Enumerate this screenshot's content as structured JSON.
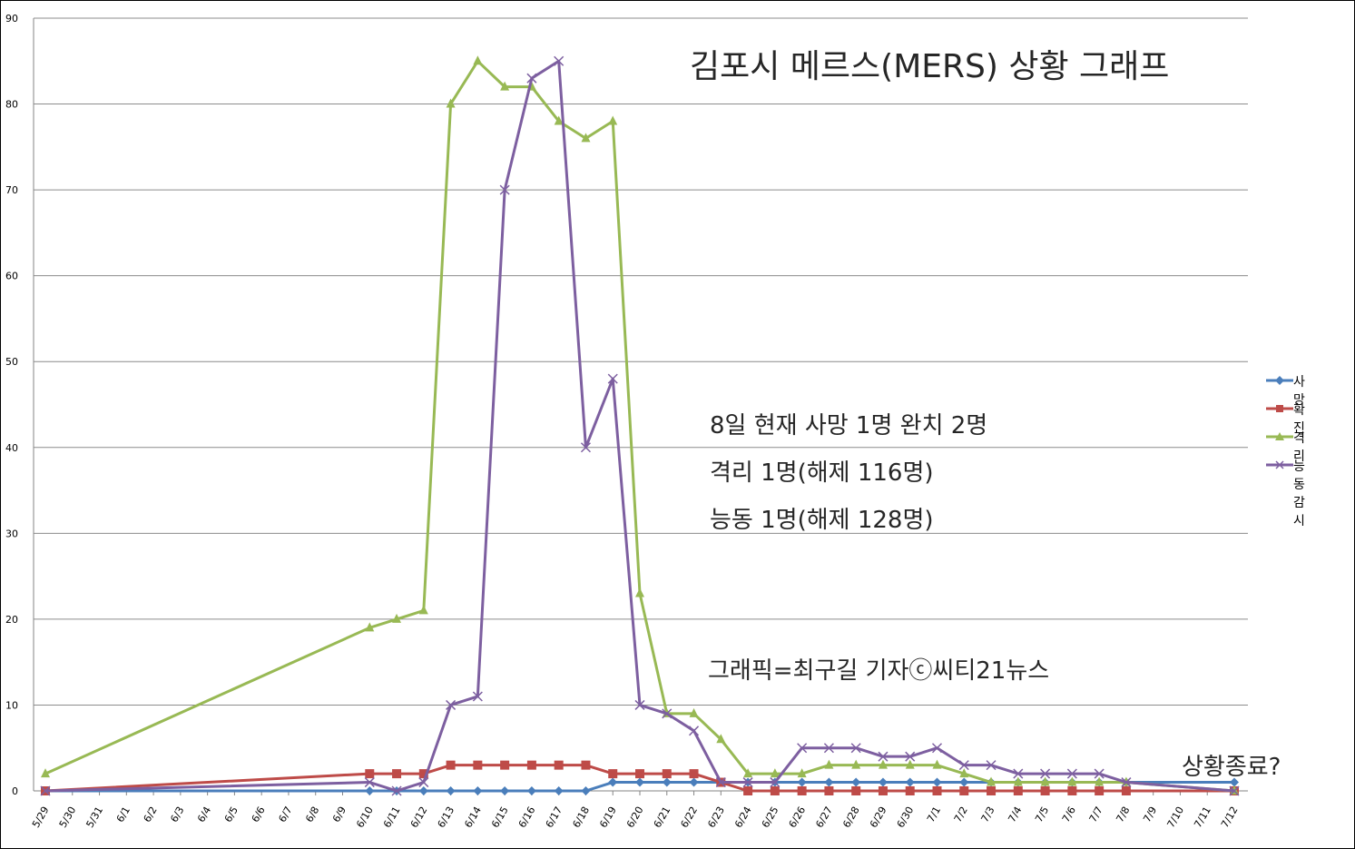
{
  "chart_data": {
    "type": "line",
    "title": "김포시 메르스(MERS) 상황 그래프",
    "categories": [
      "5/29",
      "5/30",
      "5/31",
      "6/1",
      "6/2",
      "6/3",
      "6/4",
      "6/5",
      "6/6",
      "6/7",
      "6/8",
      "6/9",
      "6/10",
      "6/11",
      "6/12",
      "6/13",
      "6/14",
      "6/15",
      "6/16",
      "6/17",
      "6/18",
      "6/19",
      "6/20",
      "6/21",
      "6/22",
      "6/23",
      "6/24",
      "6/25",
      "6/26",
      "6/27",
      "6/28",
      "6/29",
      "6/30",
      "7/1",
      "7/2",
      "7/3",
      "7/4",
      "7/5",
      "7/6",
      "7/7",
      "7/8",
      "7/9",
      "7/10",
      "7/11",
      "7/12"
    ],
    "yticks": [
      "0",
      "10",
      "20",
      "30",
      "40",
      "50",
      "60",
      "70",
      "80",
      "90"
    ],
    "ylim": [
      0,
      90
    ],
    "grid": true,
    "legend_position": "right",
    "series": [
      {
        "name": "사망",
        "color": "#4a7ebb",
        "marker": "diamond",
        "values": [
          0,
          null,
          null,
          null,
          null,
          null,
          null,
          null,
          null,
          null,
          null,
          null,
          0,
          0,
          0,
          0,
          0,
          0,
          0,
          0,
          0,
          1,
          1,
          1,
          1,
          1,
          1,
          1,
          1,
          1,
          1,
          1,
          1,
          1,
          1,
          1,
          1,
          1,
          1,
          1,
          1,
          null,
          null,
          null,
          1
        ]
      },
      {
        "name": "확진",
        "color": "#be4b48",
        "marker": "square",
        "values": [
          0,
          null,
          null,
          null,
          null,
          null,
          null,
          null,
          null,
          null,
          null,
          null,
          2,
          2,
          2,
          3,
          3,
          3,
          3,
          3,
          3,
          2,
          2,
          2,
          2,
          1,
          0,
          0,
          0,
          0,
          0,
          0,
          0,
          0,
          0,
          0,
          0,
          0,
          0,
          0,
          0,
          null,
          null,
          null,
          0
        ]
      },
      {
        "name": "격리",
        "color": "#98b954",
        "marker": "triangle",
        "values": [
          2,
          null,
          null,
          null,
          null,
          null,
          null,
          null,
          null,
          null,
          null,
          null,
          19,
          20,
          21,
          80,
          85,
          82,
          82,
          78,
          76,
          78,
          23,
          9,
          9,
          6,
          2,
          2,
          2,
          3,
          3,
          3,
          3,
          3,
          2,
          1,
          1,
          1,
          1,
          1,
          1,
          null,
          null,
          null,
          0
        ]
      },
      {
        "name": "능동감시",
        "color": "#7d5fa0",
        "marker": "x",
        "values": [
          0,
          null,
          null,
          null,
          null,
          null,
          null,
          null,
          null,
          null,
          null,
          null,
          1,
          0,
          1,
          10,
          11,
          70,
          83,
          85,
          40,
          48,
          10,
          9,
          7,
          1,
          1,
          1,
          5,
          5,
          5,
          4,
          4,
          5,
          3,
          3,
          2,
          2,
          2,
          2,
          1,
          null,
          null,
          null,
          0
        ]
      }
    ]
  },
  "annotations": {
    "note1": "8일 현재 사망 1명 완치 2명",
    "note2": "격리 1명(해제 116명)",
    "note3": "능동 1명(해제 128명)",
    "credit": "그래픽=최구길 기자ⓒ씨티21뉴스",
    "status": "상황종료?"
  }
}
